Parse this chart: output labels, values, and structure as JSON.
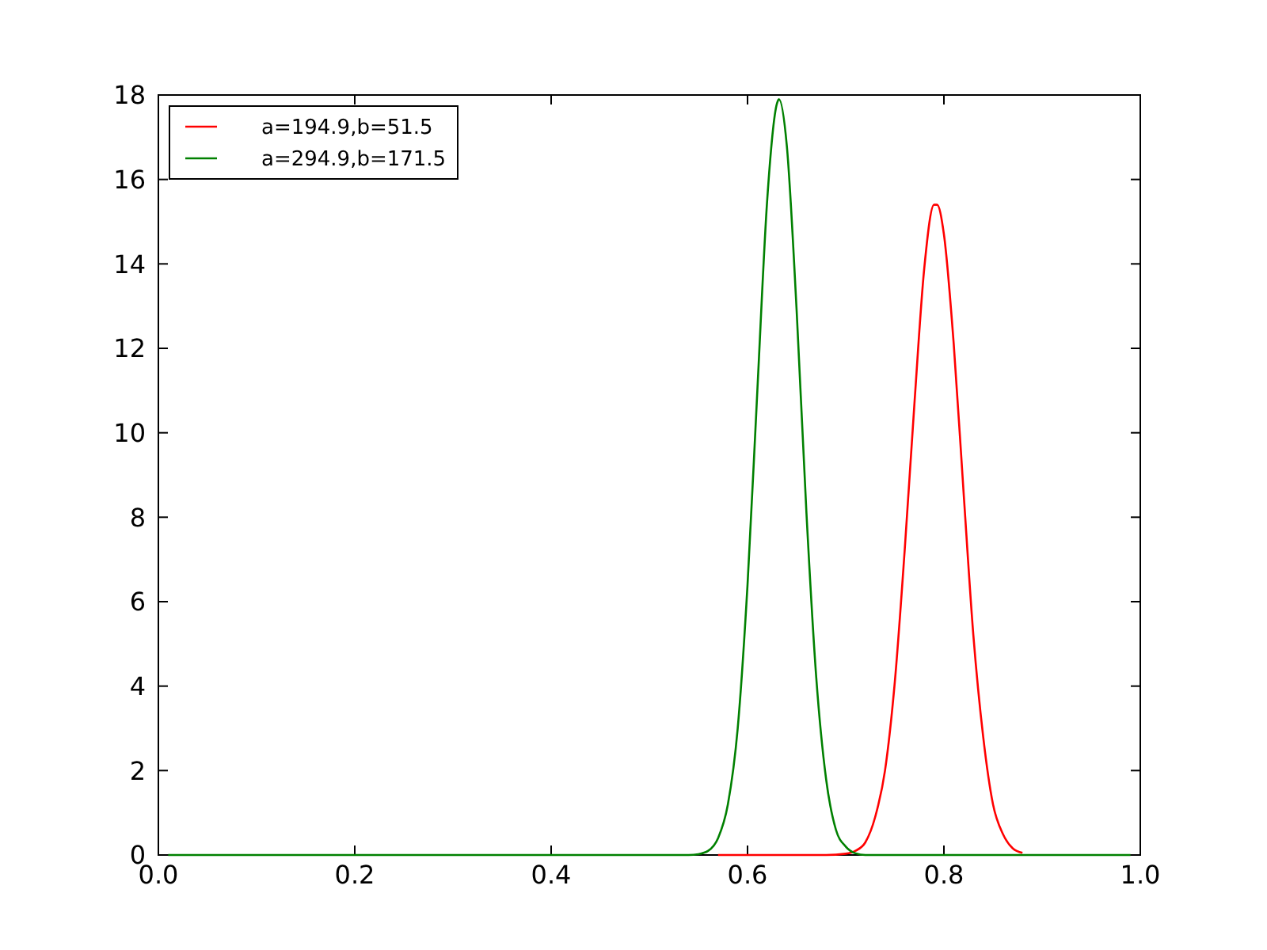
{
  "chart_data": {
    "type": "line",
    "series": [
      {
        "name": "a=194.9,b=51.5",
        "color": "#ff0000",
        "x": [
          0.57,
          0.6,
          0.68,
          0.7,
          0.71,
          0.72,
          0.73,
          0.74,
          0.75,
          0.76,
          0.77,
          0.78,
          0.79,
          0.793,
          0.8,
          0.81,
          0.82,
          0.83,
          0.84,
          0.85,
          0.86,
          0.87,
          0.88
        ],
        "values": [
          0,
          0,
          0,
          0.03,
          0.1,
          0.3,
          0.9,
          2.0,
          4.1,
          7.2,
          10.7,
          13.9,
          15.4,
          15.4,
          14.7,
          12.1,
          8.6,
          5.2,
          2.8,
          1.2,
          0.5,
          0.16,
          0.05
        ]
      },
      {
        "name": "a=294.9,b=171.5",
        "color": "#008000",
        "x": [
          0.01,
          0.5,
          0.54,
          0.55,
          0.56,
          0.57,
          0.58,
          0.59,
          0.6,
          0.61,
          0.62,
          0.63,
          0.632,
          0.64,
          0.65,
          0.66,
          0.67,
          0.68,
          0.69,
          0.7,
          0.71,
          0.72,
          0.99
        ],
        "values": [
          0,
          0,
          0,
          0.02,
          0.1,
          0.4,
          1.2,
          3.0,
          6.4,
          11.0,
          15.5,
          17.8,
          17.9,
          16.8,
          12.9,
          8.1,
          4.2,
          1.8,
          0.6,
          0.2,
          0.04,
          0,
          0
        ]
      }
    ],
    "xlim": [
      0,
      1
    ],
    "xticks": [
      {
        "value": 0,
        "label": "0.0"
      },
      0.2,
      0.4,
      0.6,
      0.8,
      {
        "value": 1,
        "label": "1.0"
      }
    ],
    "ylim": [
      0,
      18
    ],
    "yticks": [
      0,
      2,
      4,
      6,
      8,
      10,
      12,
      14,
      16,
      18
    ],
    "legend": "top left"
  }
}
